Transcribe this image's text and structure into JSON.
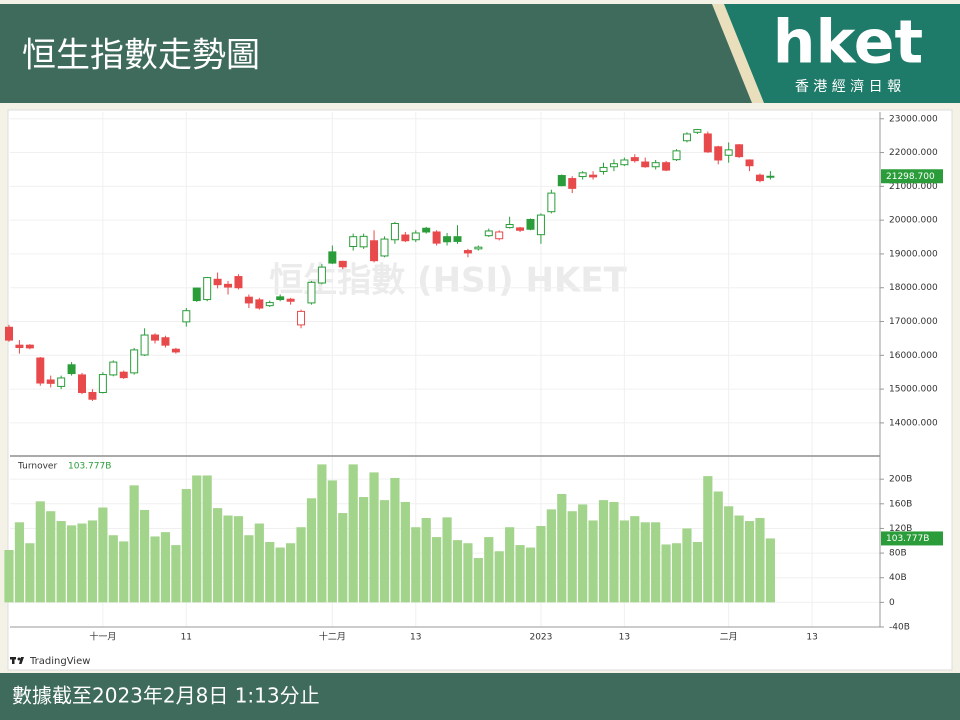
{
  "header": {
    "title": "恒生指數走勢圖",
    "logo": "hket",
    "logo_subtitle": "香 港 經 濟 日 報"
  },
  "chart_data": {
    "type": "candlestick",
    "watermark": "恒生指數 (HSI) HKET",
    "categories": [
      null,
      null,
      null,
      null,
      null,
      null,
      null,
      null,
      null,
      "十一月",
      null,
      null,
      null,
      null,
      null,
      null,
      null,
      "11",
      null,
      null,
      null,
      null,
      null,
      null,
      null,
      null,
      null,
      null,
      null,
      null,
      null,
      "十二月",
      null,
      null,
      null,
      null,
      null,
      null,
      null,
      "13",
      null,
      null,
      null,
      null,
      null,
      null,
      null,
      null,
      null,
      null,
      null,
      "2023",
      null,
      null,
      null,
      null,
      null,
      null,
      null,
      "13",
      null,
      null,
      null,
      null,
      null,
      null,
      null,
      null,
      null,
      "二月",
      null,
      null,
      null,
      null,
      null,
      null,
      null,
      "13"
    ],
    "open": [
      16830,
      16300,
      16300,
      15920,
      15270,
      15080,
      15720,
      15420,
      14900,
      14900,
      15420,
      15500,
      15480,
      16010,
      16600,
      16520,
      16180,
      16990,
      17990,
      17650,
      18250,
      18100,
      18330,
      17720,
      17640,
      17470,
      17730,
      17660,
      16900,
      17550,
      18140,
      19060,
      18780,
      19220,
      19210,
      19390,
      18940,
      19420,
      19560,
      19420,
      19760,
      19650,
      19510,
      19510,
      19100,
      19150,
      19540,
      19450,
      19780,
      19770,
      20020,
      19570,
      20250,
      21320,
      21230,
      21290,
      21330,
      21440,
      21580,
      21640,
      21850,
      21720,
      21580,
      21700,
      21790,
      22350,
      22600,
      22550,
      22170,
      21920,
      22230,
      21780,
      21330,
      21280,
      null,
      null,
      null,
      null
    ],
    "high": [
      16900,
      16450,
      16330,
      15950,
      15400,
      15400,
      15800,
      15480,
      15000,
      15500,
      15850,
      15550,
      16220,
      16800,
      16650,
      16580,
      16220,
      17400,
      18000,
      18320,
      18450,
      18200,
      18400,
      17800,
      17700,
      17620,
      17800,
      17700,
      17350,
      18200,
      18700,
      19250,
      18800,
      19600,
      19600,
      19700,
      19520,
      19950,
      19650,
      19700,
      19800,
      19700,
      19620,
      19850,
      19150,
      19250,
      19750,
      19700,
      20100,
      19800,
      20050,
      20200,
      20900,
      21350,
      21300,
      21450,
      21450,
      21700,
      21800,
      21850,
      21950,
      21850,
      21780,
      21750,
      22100,
      22600,
      22700,
      22620,
      22200,
      22300,
      22250,
      21800,
      21380,
      21450,
      null,
      null,
      null,
      null
    ],
    "low": [
      16400,
      16050,
      16180,
      15100,
      15050,
      15000,
      15400,
      14850,
      14650,
      14870,
      15380,
      15300,
      15430,
      15980,
      16350,
      16230,
      16050,
      16850,
      17580,
      17600,
      17980,
      17800,
      17950,
      17400,
      17350,
      17430,
      17600,
      17500,
      16800,
      17500,
      18100,
      18700,
      18550,
      19100,
      19150,
      18750,
      18900,
      19300,
      19350,
      19350,
      19600,
      19250,
      19250,
      19300,
      18900,
      19100,
      19500,
      19400,
      19750,
      19650,
      19700,
      19300,
      20200,
      21000,
      20800,
      21200,
      21200,
      21350,
      21450,
      21600,
      21700,
      21550,
      21500,
      21450,
      21750,
      22300,
      22550,
      21990,
      21650,
      21700,
      21840,
      21450,
      21120,
      21200,
      null,
      null,
      null,
      null
    ],
    "close": [
      16450,
      16230,
      16220,
      15180,
      15170,
      15330,
      15460,
      14900,
      14700,
      15430,
      15800,
      15340,
      16160,
      16600,
      16450,
      16300,
      16100,
      17320,
      17620,
      18300,
      18090,
      18020,
      18000,
      17550,
      17400,
      17560,
      17650,
      17600,
      17300,
      18160,
      18610,
      18730,
      18620,
      19510,
      19520,
      18800,
      19440,
      19900,
      19390,
      19620,
      19650,
      19320,
      19360,
      19370,
      19030,
      19200,
      19680,
      19650,
      19870,
      19700,
      19730,
      20150,
      20800,
      21020,
      20940,
      21400,
      21280,
      21560,
      21670,
      21780,
      21760,
      21580,
      21700,
      21480,
      22050,
      22550,
      22680,
      22020,
      21780,
      22080,
      21880,
      21610,
      21170,
      21298.7,
      null,
      null,
      null,
      null
    ],
    "up_color": "#2a9d3a",
    "down_color": "#e84a4c",
    "last_label": "21298.700",
    "ylim": [
      13050,
      23200
    ],
    "yticks": [
      {
        "value": 14000,
        "label": "14000.000"
      },
      {
        "value": 15000,
        "label": "15000.000"
      },
      {
        "value": 16000,
        "label": "16000.000"
      },
      {
        "value": 17000,
        "label": "17000.000"
      },
      {
        "value": 18000,
        "label": "18000.000"
      },
      {
        "value": 19000,
        "label": "19000.000"
      },
      {
        "value": 20000,
        "label": "20000.000"
      },
      {
        "value": 21000,
        "label": "21000.000"
      },
      {
        "value": 22000,
        "label": "22000.000"
      },
      {
        "value": 23000,
        "label": "23000.000"
      }
    ],
    "grid": true,
    "volume": {
      "name": "Turnover",
      "color": "#a3d48c",
      "last_label": "103.777B",
      "values": [
        85,
        130,
        96,
        164,
        148,
        132,
        125,
        128,
        133,
        154,
        109,
        99,
        190,
        150,
        107,
        114,
        93,
        184,
        206,
        206,
        153,
        141,
        140,
        109,
        128,
        98,
        89,
        96,
        122,
        169,
        224,
        198,
        145,
        224,
        171,
        211,
        166,
        202,
        163,
        122,
        137,
        106,
        138,
        101,
        96,
        72,
        106,
        83,
        122,
        93,
        89,
        124,
        151,
        176,
        148,
        159,
        133,
        166,
        163,
        133,
        140,
        130,
        130,
        94,
        96,
        120,
        98,
        205,
        180,
        156,
        141,
        132,
        137,
        103.777,
        null,
        null,
        null,
        null
      ],
      "ylim": [
        -40,
        236
      ],
      "yticks": [
        {
          "value": -40,
          "label": "-40B"
        },
        0,
        {
          "value": 40,
          "label": "40B"
        },
        {
          "value": 80,
          "label": "80B"
        },
        {
          "value": 120,
          "label": "120B"
        },
        {
          "value": 160,
          "label": "160B"
        },
        {
          "value": 200,
          "label": "200B"
        }
      ]
    }
  },
  "branding": "TradingView",
  "footer": "數據截至2023年2月8日 1:13分止"
}
